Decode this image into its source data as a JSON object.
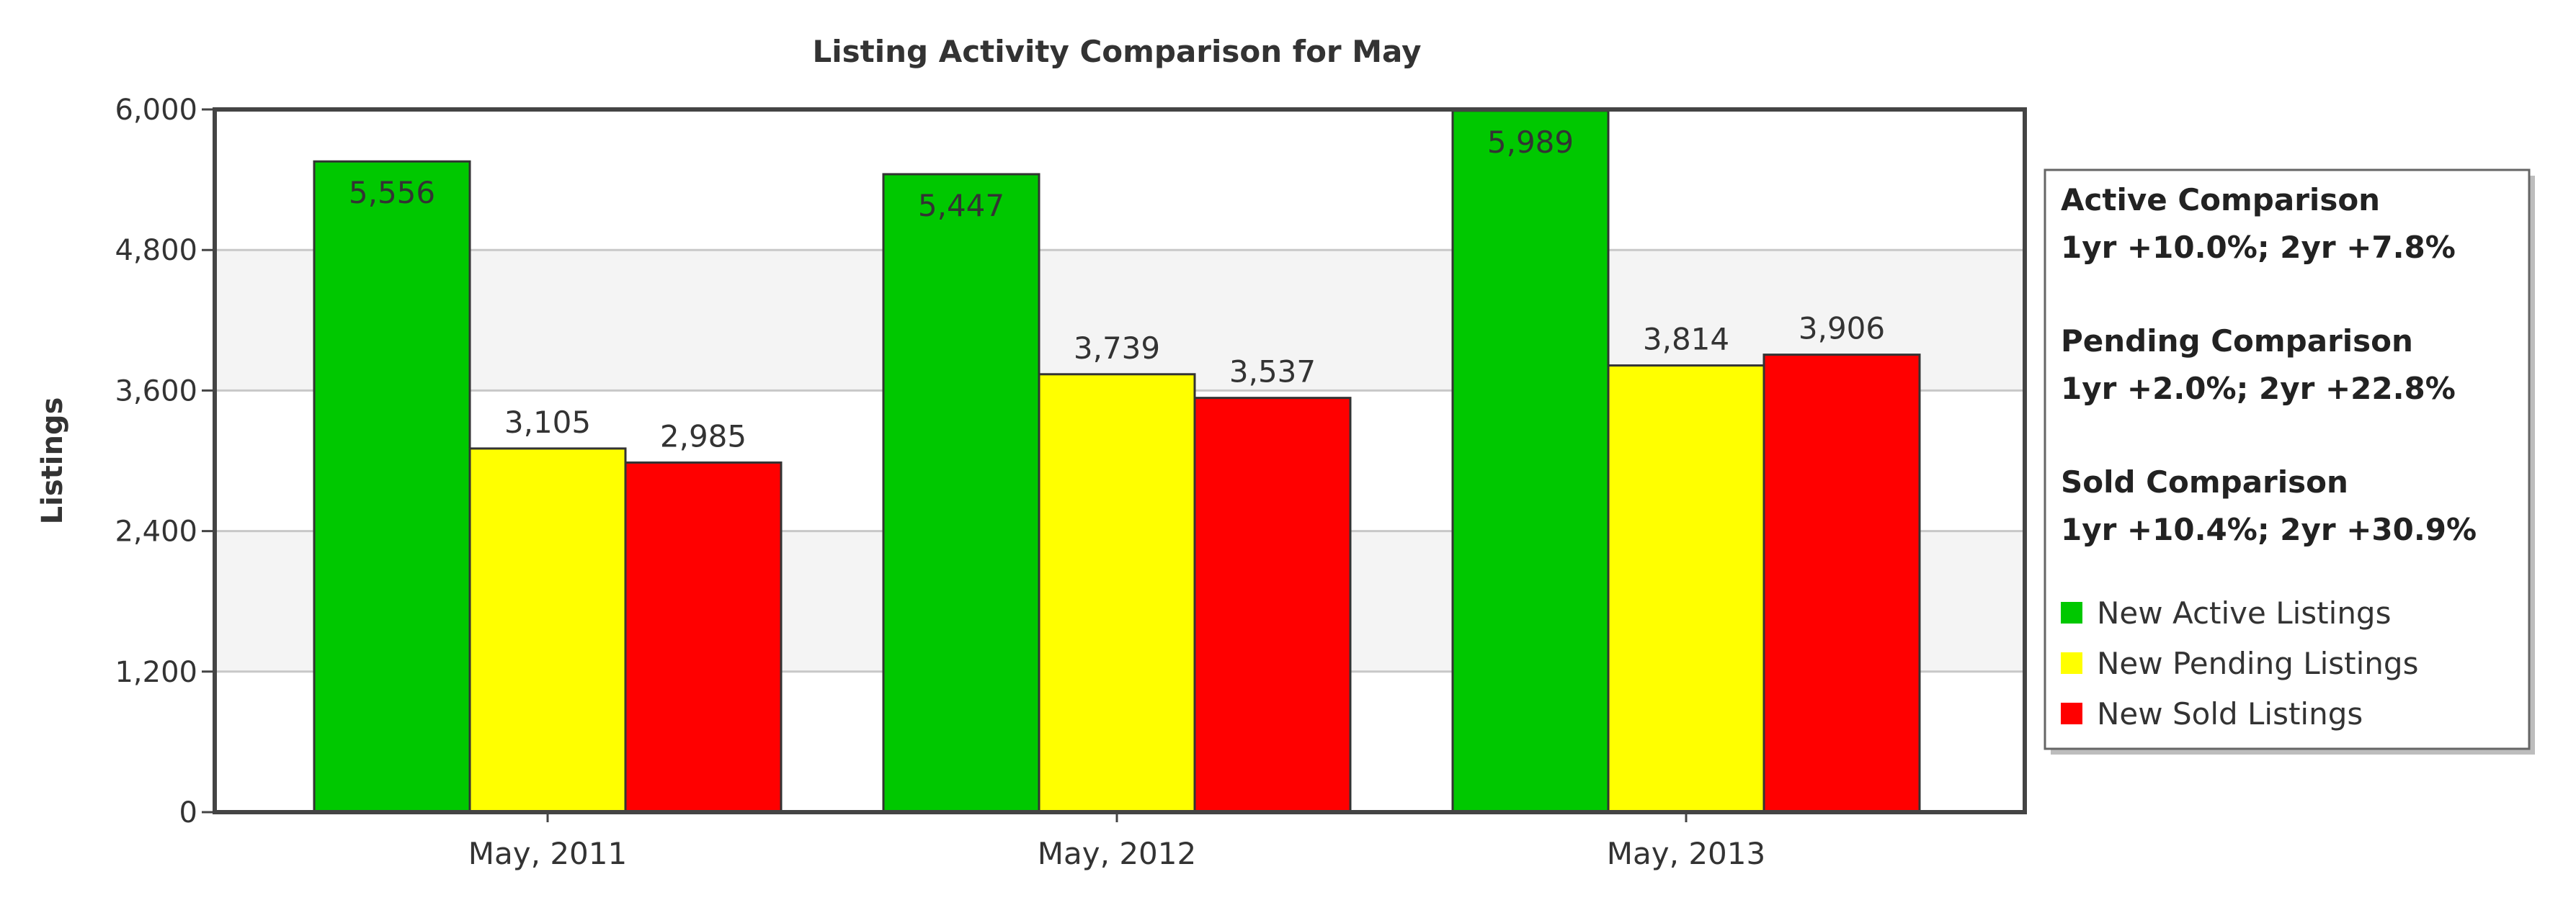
{
  "chart_data": {
    "type": "bar",
    "title": "Listing Activity Comparison for May",
    "xlabel": "",
    "ylabel": "Listings",
    "ylim": [
      0,
      6000
    ],
    "yticks": [
      "0",
      "1,200",
      "2,400",
      "3,600",
      "4,800",
      "6,000"
    ],
    "ytick_values": [
      0,
      1200,
      2400,
      3600,
      4800,
      6000
    ],
    "categories": [
      "May, 2011",
      "May, 2012",
      "May, 2013"
    ],
    "series": [
      {
        "name": "New Active Listings",
        "color": "#00c800",
        "values": [
          5556,
          5447,
          5989
        ],
        "labels": [
          "5,556",
          "5,447",
          "5,989"
        ]
      },
      {
        "name": "New Pending Listings",
        "color": "#ffff00",
        "values": [
          3105,
          3739,
          3814
        ],
        "labels": [
          "3,105",
          "3,739",
          "3,814"
        ]
      },
      {
        "name": "New Sold Listings",
        "color": "#ff0000",
        "values": [
          2985,
          3537,
          3906
        ],
        "labels": [
          "2,985",
          "3,537",
          "3,906"
        ]
      }
    ],
    "grid": true,
    "legend_position": "right",
    "comparisons": [
      {
        "title": "Active Comparison",
        "detail": "1yr +10.0%; 2yr +7.8%"
      },
      {
        "title": "Pending Comparison",
        "detail": "1yr +2.0%; 2yr +22.8%"
      },
      {
        "title": "Sold Comparison",
        "detail": "1yr +10.4%; 2yr +30.9%"
      }
    ]
  }
}
